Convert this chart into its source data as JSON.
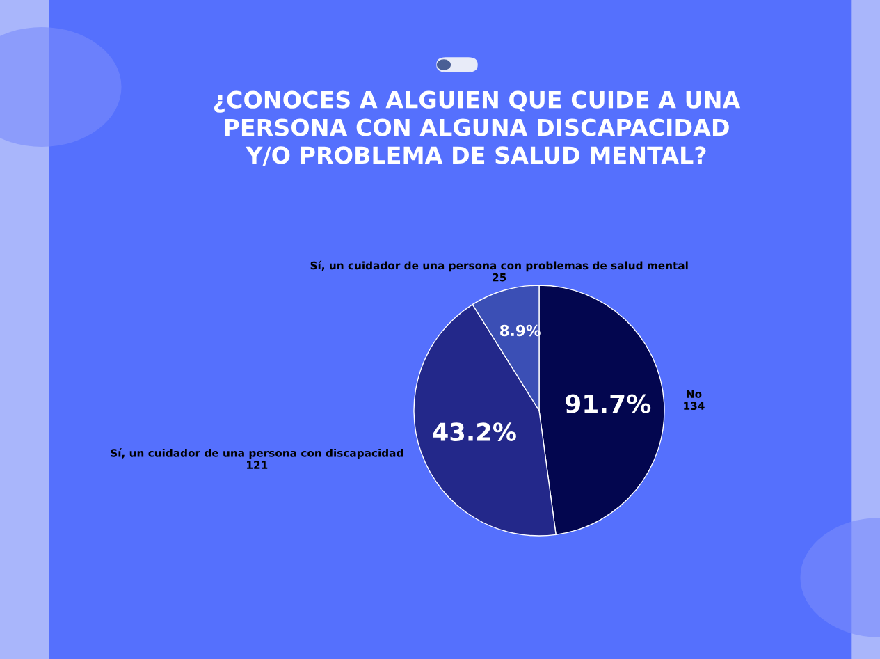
{
  "chart_data": {
    "type": "pie",
    "title": "¿CONOCES A ALGUIEN QUE CUIDE A UNA\nPERSONA CON ALGUNA DISCAPACIDAD\nY/O PROBLEMA DE SALUD MENTAL?",
    "categories": [
      "No",
      "Sí, un cuidador de una persona con discapacidad",
      "Sí, un cuidador de una persona con problemas de salud mental"
    ],
    "values": [
      134,
      121,
      25
    ],
    "colors": [
      "#03064f",
      "#23288a",
      "#3b4fb5"
    ],
    "data_labels": true,
    "annotations": [
      {
        "text": "91.7%",
        "x": "No"
      },
      {
        "text": "43.2%",
        "x": "Sí, un cuidador de una persona con discapacidad"
      },
      {
        "text": "8.9%",
        "x": "Sí, un cuidador de una persona con problemas de salud mental"
      }
    ]
  }
}
